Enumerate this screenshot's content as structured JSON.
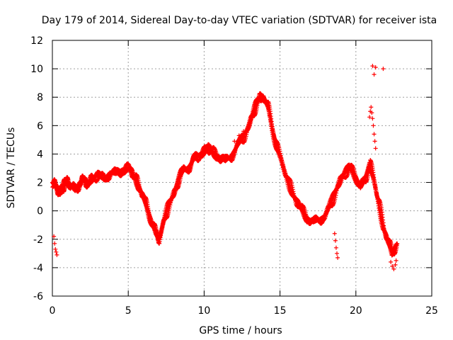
{
  "chart_data": {
    "type": "scatter",
    "title": "Day 179 of 2014, Sidereal Day-to-day VTEC variation (SDTVAR) for receiver ista",
    "xlabel": "GPS time / hours",
    "ylabel": "SDTVAR / TECUs",
    "xlim": [
      0,
      25
    ],
    "ylim": [
      -6,
      12
    ],
    "xticks": [
      0,
      5,
      10,
      15,
      20,
      25
    ],
    "yticks": [
      -6,
      -4,
      -2,
      0,
      2,
      4,
      6,
      8,
      10,
      12
    ],
    "grid": true,
    "marker": "+",
    "color": "#ff0000",
    "series": [
      {
        "name": "SDTVAR",
        "x": [
          0.0,
          0.2,
          0.4,
          0.6,
          0.8,
          1.0,
          1.2,
          1.5,
          1.8,
          2.0,
          2.3,
          2.6,
          3.0,
          3.4,
          3.8,
          4.2,
          4.6,
          5.0,
          5.3,
          5.6,
          5.9,
          6.2,
          6.5,
          6.8,
          7.0,
          7.3,
          7.6,
          8.0,
          8.3,
          8.6,
          9.0,
          9.3,
          9.6,
          10.0,
          10.3,
          10.6,
          11.0,
          11.4,
          11.8,
          12.2,
          12.6,
          13.0,
          13.3,
          13.6,
          13.9,
          14.2,
          14.5,
          14.8,
          15.2,
          15.6,
          16.0,
          16.4,
          16.8,
          17.2,
          17.6,
          18.0,
          18.4,
          18.8,
          19.2,
          19.6,
          20.0,
          20.3,
          20.6,
          20.9,
          21.2,
          21.5,
          21.8,
          22.1,
          22.4,
          22.7
        ],
        "y": [
          2.0,
          1.7,
          1.3,
          1.5,
          1.9,
          2.1,
          1.8,
          1.4,
          2.0,
          2.2,
          1.9,
          2.3,
          2.5,
          2.2,
          2.7,
          2.6,
          2.9,
          3.0,
          2.6,
          2.0,
          1.2,
          0.3,
          -0.6,
          -1.6,
          -2.0,
          -0.9,
          0.2,
          1.2,
          2.2,
          2.8,
          3.1,
          3.6,
          3.9,
          4.2,
          4.4,
          4.1,
          3.8,
          3.5,
          3.9,
          4.6,
          5.2,
          6.2,
          7.1,
          7.9,
          8.1,
          7.3,
          5.8,
          4.4,
          3.1,
          1.9,
          0.8,
          0.1,
          -0.5,
          -0.8,
          -0.6,
          -0.3,
          0.6,
          1.8,
          2.6,
          3.0,
          2.4,
          1.6,
          2.2,
          3.4,
          2.0,
          0.6,
          -1.1,
          -2.2,
          -2.9,
          -2.3
        ],
        "extra_points": {
          "x": [
            0.1,
            0.15,
            0.2,
            0.25,
            0.3,
            21.1,
            21.2,
            21.3,
            21.8,
            20.9,
            20.95,
            21.0,
            21.05,
            21.1,
            21.15,
            21.2,
            21.25,
            21.3,
            22.3,
            22.4,
            22.5,
            22.6,
            22.65,
            18.6,
            18.65,
            18.7,
            18.75,
            18.8,
            12.0,
            12.3,
            12.6
          ],
          "y": [
            -1.8,
            -2.3,
            -2.7,
            -2.9,
            -3.1,
            10.2,
            9.6,
            10.1,
            10.0,
            6.6,
            7.0,
            7.3,
            6.9,
            6.5,
            6.0,
            5.4,
            4.9,
            4.4,
            -3.6,
            -3.9,
            -4.1,
            -3.8,
            -3.5,
            -1.6,
            -2.1,
            -2.6,
            -3.0,
            -3.3,
            4.9,
            5.3,
            5.6
          ]
        }
      }
    ]
  }
}
